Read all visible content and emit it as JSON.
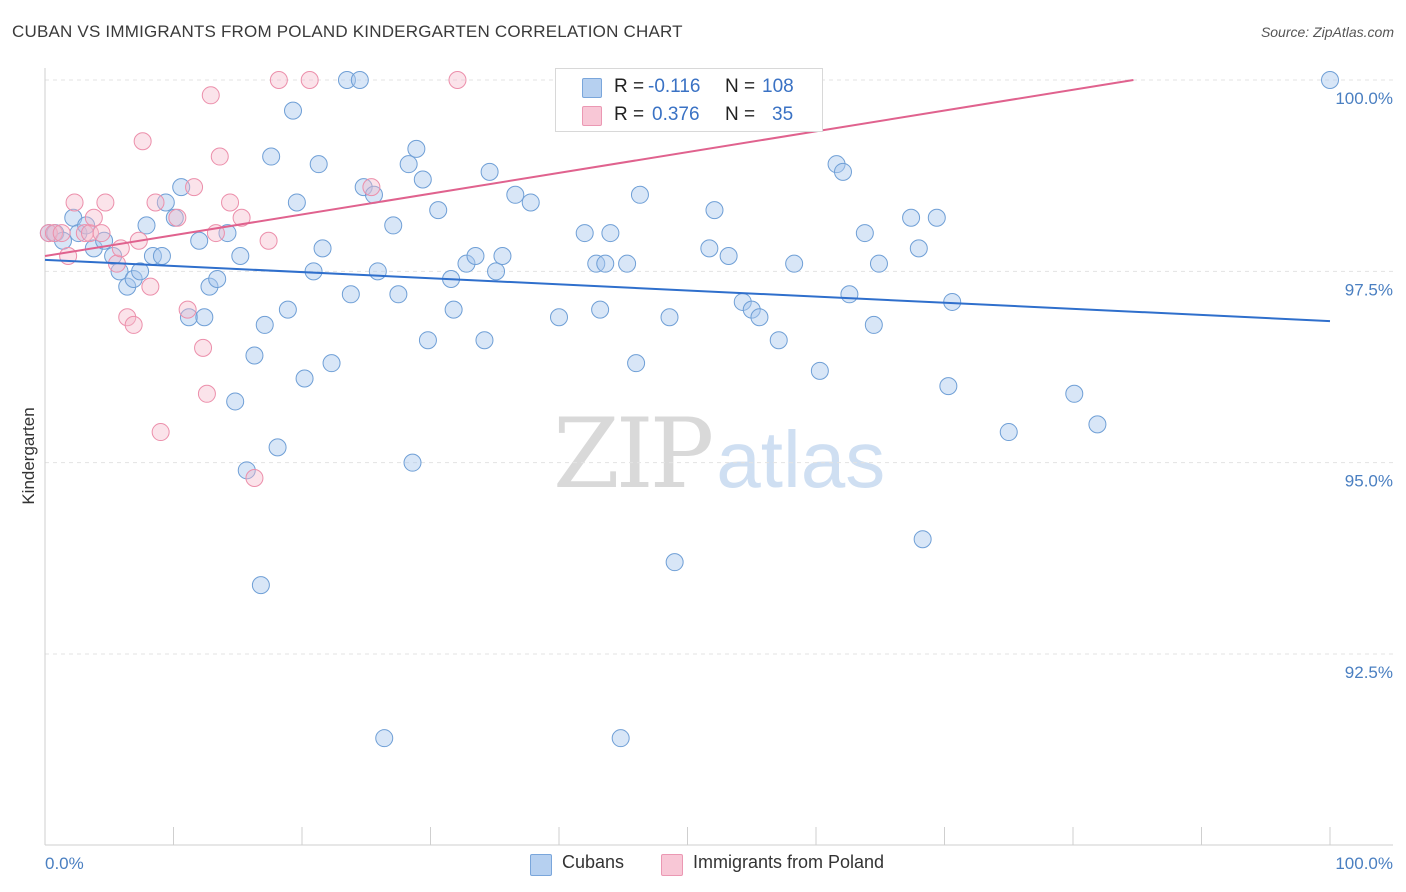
{
  "header": {
    "title": "CUBAN VS IMMIGRANTS FROM POLAND KINDERGARTEN CORRELATION CHART",
    "source": "Source: ZipAtlas.com"
  },
  "watermark": {
    "part1": "ZIP",
    "part2": "atlas"
  },
  "colors": {
    "cubans_fill": "#a9c8ee",
    "cubans_stroke": "#6f9fd6",
    "cubans_line": "#2f6fcc",
    "poland_fill": "#f6b9cb",
    "poland_stroke": "#ec8fab",
    "poland_line": "#e0628e",
    "axis_text": "#4a7fc1",
    "grid": "#e3e3e3"
  },
  "legend": {
    "rows": [
      {
        "r_label": "R =",
        "r_value": "-0.116",
        "n_label": "N =",
        "n_value": "108"
      },
      {
        "r_label": "R =",
        "r_value": "0.376",
        "n_label": "N =",
        "n_value": "35"
      }
    ]
  },
  "bottom_legend": {
    "items": [
      "Cubans",
      "Immigrants from Poland"
    ]
  },
  "chart_data": {
    "type": "scatter",
    "title": "CUBAN VS IMMIGRANTS FROM POLAND KINDERGARTEN CORRELATION CHART",
    "xlabel": "",
    "ylabel": "Kindergarten",
    "xlim": [
      0,
      100
    ],
    "ylim": [
      89.5,
      100.5
    ],
    "x_tick_labels": [
      "0.0%",
      "100.0%"
    ],
    "y_ticks": [
      92.5,
      95.0,
      97.5,
      100.0
    ],
    "y_tick_labels": [
      "92.5%",
      "95.0%",
      "97.5%",
      "100.0%"
    ],
    "grid": true,
    "series": [
      {
        "name": "Cubans",
        "trend": {
          "x": [
            0,
            100
          ],
          "y": [
            97.65,
            96.85
          ]
        },
        "points": [
          [
            0.3,
            98.0
          ],
          [
            0.8,
            98.0
          ],
          [
            1.4,
            97.9
          ],
          [
            2.2,
            98.2
          ],
          [
            2.6,
            98.0
          ],
          [
            3.2,
            98.1
          ],
          [
            3.8,
            97.8
          ],
          [
            4.6,
            97.9
          ],
          [
            5.3,
            97.7
          ],
          [
            5.8,
            97.5
          ],
          [
            6.4,
            97.3
          ],
          [
            6.9,
            97.4
          ],
          [
            7.4,
            97.5
          ],
          [
            7.9,
            98.1
          ],
          [
            8.4,
            97.7
          ],
          [
            9.1,
            97.7
          ],
          [
            9.4,
            98.4
          ],
          [
            10.1,
            98.2
          ],
          [
            10.6,
            98.6
          ],
          [
            11.2,
            96.9
          ],
          [
            12.0,
            97.9
          ],
          [
            12.4,
            96.9
          ],
          [
            12.8,
            97.3
          ],
          [
            13.4,
            97.4
          ],
          [
            14.2,
            98.0
          ],
          [
            14.8,
            95.8
          ],
          [
            15.2,
            97.7
          ],
          [
            15.7,
            94.9
          ],
          [
            16.3,
            96.4
          ],
          [
            16.8,
            93.4
          ],
          [
            17.1,
            96.8
          ],
          [
            17.6,
            99.0
          ],
          [
            18.1,
            95.2
          ],
          [
            18.9,
            97.0
          ],
          [
            19.3,
            99.6
          ],
          [
            19.6,
            98.4
          ],
          [
            20.2,
            96.1
          ],
          [
            20.9,
            97.5
          ],
          [
            21.3,
            98.9
          ],
          [
            21.6,
            97.8
          ],
          [
            22.3,
            96.3
          ],
          [
            23.5,
            100.0
          ],
          [
            23.8,
            97.2
          ],
          [
            24.5,
            100.0
          ],
          [
            24.8,
            98.6
          ],
          [
            25.6,
            98.5
          ],
          [
            25.9,
            97.5
          ],
          [
            26.4,
            91.4
          ],
          [
            27.1,
            98.1
          ],
          [
            27.5,
            97.2
          ],
          [
            28.3,
            98.9
          ],
          [
            28.6,
            95.0
          ],
          [
            28.9,
            99.1
          ],
          [
            29.4,
            98.7
          ],
          [
            29.8,
            96.6
          ],
          [
            30.6,
            98.3
          ],
          [
            31.6,
            97.4
          ],
          [
            31.8,
            97.0
          ],
          [
            32.8,
            97.6
          ],
          [
            33.5,
            97.7
          ],
          [
            34.2,
            96.6
          ],
          [
            34.6,
            98.8
          ],
          [
            35.1,
            97.5
          ],
          [
            35.6,
            97.7
          ],
          [
            36.6,
            98.5
          ],
          [
            37.8,
            98.4
          ],
          [
            40.0,
            96.9
          ],
          [
            42.0,
            98.0
          ],
          [
            42.9,
            97.6
          ],
          [
            43.2,
            97.0
          ],
          [
            43.6,
            97.6
          ],
          [
            44.0,
            98.0
          ],
          [
            44.8,
            91.4
          ],
          [
            45.3,
            97.6
          ],
          [
            46.0,
            96.3
          ],
          [
            46.3,
            98.5
          ],
          [
            48.6,
            96.9
          ],
          [
            49.0,
            93.7
          ],
          [
            51.7,
            97.8
          ],
          [
            52.1,
            98.3
          ],
          [
            53.2,
            97.7
          ],
          [
            54.3,
            97.1
          ],
          [
            55.0,
            97.0
          ],
          [
            55.6,
            96.9
          ],
          [
            57.1,
            96.6
          ],
          [
            58.3,
            97.6
          ],
          [
            60.3,
            96.2
          ],
          [
            61.6,
            98.9
          ],
          [
            62.1,
            98.8
          ],
          [
            62.6,
            97.2
          ],
          [
            63.8,
            98.0
          ],
          [
            64.5,
            96.8
          ],
          [
            64.9,
            97.6
          ],
          [
            67.4,
            98.2
          ],
          [
            68.0,
            97.8
          ],
          [
            68.3,
            94.0
          ],
          [
            69.4,
            98.2
          ],
          [
            70.3,
            96.0
          ],
          [
            70.6,
            97.1
          ],
          [
            75.0,
            95.4
          ],
          [
            80.1,
            95.9
          ],
          [
            81.9,
            95.5
          ],
          [
            100.0,
            100.0
          ]
        ]
      },
      {
        "name": "Immigrants from Poland",
        "trend": {
          "x": [
            0,
            84.7
          ],
          "y": [
            97.7,
            100.0
          ]
        },
        "points": [
          [
            0.3,
            98.0
          ],
          [
            0.7,
            98.0
          ],
          [
            1.3,
            98.0
          ],
          [
            1.8,
            97.7
          ],
          [
            2.3,
            98.4
          ],
          [
            3.1,
            98.0
          ],
          [
            3.5,
            98.0
          ],
          [
            3.8,
            98.2
          ],
          [
            4.4,
            98.0
          ],
          [
            4.7,
            98.4
          ],
          [
            5.6,
            97.6
          ],
          [
            5.9,
            97.8
          ],
          [
            6.4,
            96.9
          ],
          [
            6.9,
            96.8
          ],
          [
            7.3,
            97.9
          ],
          [
            7.6,
            99.2
          ],
          [
            8.2,
            97.3
          ],
          [
            8.6,
            98.4
          ],
          [
            9.0,
            95.4
          ],
          [
            10.3,
            98.2
          ],
          [
            11.1,
            97.0
          ],
          [
            11.6,
            98.6
          ],
          [
            12.3,
            96.5
          ],
          [
            12.6,
            95.9
          ],
          [
            12.9,
            99.8
          ],
          [
            13.3,
            98.0
          ],
          [
            13.6,
            99.0
          ],
          [
            14.4,
            98.4
          ],
          [
            15.3,
            98.2
          ],
          [
            16.3,
            94.8
          ],
          [
            17.4,
            97.9
          ],
          [
            18.2,
            100.0
          ],
          [
            20.6,
            100.0
          ],
          [
            25.4,
            98.6
          ],
          [
            32.1,
            100.0
          ]
        ]
      }
    ]
  }
}
